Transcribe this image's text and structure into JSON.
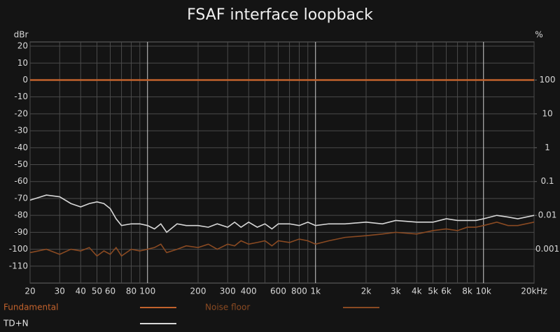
{
  "chart_data": {
    "type": "line",
    "title": "FSAF interface loopback",
    "ylabel": "dBr",
    "y2label": "%",
    "xscale": "log",
    "y2scale": "log",
    "grid": true,
    "x": [
      20,
      25,
      30,
      35,
      40,
      45,
      50,
      55,
      60,
      65,
      70,
      80,
      90,
      100,
      110,
      120,
      130,
      150,
      170,
      200,
      230,
      260,
      300,
      330,
      360,
      400,
      450,
      500,
      550,
      600,
      700,
      800,
      900,
      1000,
      1200,
      1500,
      2000,
      2500,
      3000,
      4000,
      5000,
      6000,
      7000,
      8000,
      9000,
      10000,
      12000,
      14000,
      16000,
      20000
    ],
    "xlim": [
      20,
      20000
    ],
    "xticks": [
      20,
      30,
      40,
      50,
      60,
      80,
      100,
      200,
      300,
      400,
      600,
      800,
      {
        "value": 1000,
        "label": "1k"
      },
      {
        "value": 2000,
        "label": "2k"
      },
      {
        "value": 3000,
        "label": "3k"
      },
      {
        "value": 4000,
        "label": "4k"
      },
      {
        "value": 5000,
        "label": "5k"
      },
      {
        "value": 6000,
        "label": "6k"
      },
      {
        "value": 8000,
        "label": "8k"
      },
      {
        "value": 10000,
        "label": "10k"
      },
      {
        "value": 20000,
        "label": "20kHz"
      }
    ],
    "xminorticks": [
      70,
      90,
      500,
      700,
      900,
      7000,
      9000
    ],
    "ylim": [
      -120,
      22.5
    ],
    "yticks": [
      20,
      10,
      0,
      -10,
      -20,
      -30,
      -40,
      -50,
      -60,
      -70,
      -80,
      -90,
      -100,
      -110
    ],
    "y2lim": [
      0.0001,
      1334
    ],
    "y2ticks": [
      100,
      10,
      1,
      0.1,
      0.01,
      0.001
    ],
    "series": [
      {
        "name": "Fundamental",
        "color": "#c2622c",
        "x": [
          20,
          20000
        ],
        "values": [
          0,
          0
        ]
      },
      {
        "name": "Noise floor",
        "color": "#8a4a22",
        "values": [
          -102,
          -100,
          -103,
          -100,
          -101,
          -99,
          -104,
          -101,
          -103,
          -99,
          -104,
          -100,
          -101,
          -100,
          -99,
          -97,
          -102,
          -100,
          -98,
          -99,
          -97,
          -100,
          -97,
          -98,
          -95,
          -97,
          -96,
          -95,
          -98,
          -95,
          -96,
          -94,
          -95,
          -97,
          -95,
          -93,
          -92,
          -91,
          -90,
          -91,
          -89,
          -88,
          -89,
          -87,
          -87,
          -86,
          -84,
          -86,
          -86,
          -84
        ]
      },
      {
        "name": "TD+N",
        "color": "#d8d8d8",
        "values": [
          -71,
          -68,
          -69,
          -73,
          -75,
          -73,
          -72,
          -73,
          -76,
          -82,
          -86,
          -85,
          -85,
          -86,
          -88,
          -85,
          -90,
          -85,
          -86,
          -86,
          -87,
          -85,
          -87,
          -84,
          -87,
          -84,
          -87,
          -85,
          -88,
          -85,
          -85,
          -86,
          -84,
          -86,
          -85,
          -85,
          -84,
          -85,
          -83,
          -84,
          -84,
          -82,
          -83,
          -83,
          -83,
          -82,
          -80,
          -81,
          -82,
          -80
        ]
      }
    ]
  }
}
